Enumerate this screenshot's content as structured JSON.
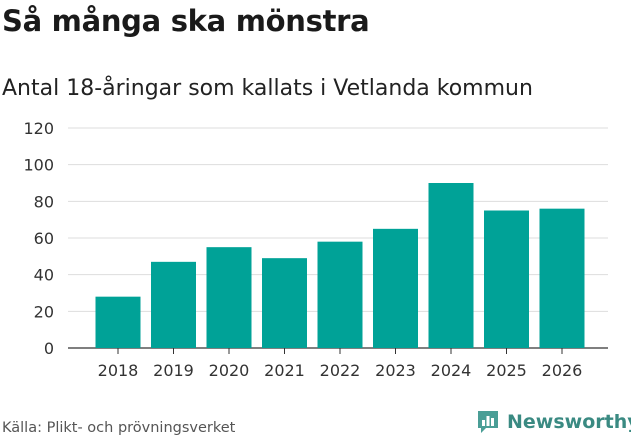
{
  "header": {
    "title": "Så många ska mönstra",
    "subtitle": "Antal 18-åringar som kallats i Vetlanda kommun"
  },
  "chart_data": {
    "type": "bar",
    "title": "Så många ska mönstra",
    "subtitle": "Antal 18-åringar som kallats i Vetlanda kommun",
    "categories": [
      "2018",
      "2019",
      "2020",
      "2021",
      "2022",
      "2023",
      "2024",
      "2025",
      "2026"
    ],
    "values": [
      28,
      47,
      55,
      49,
      58,
      65,
      90,
      75,
      76
    ],
    "xlabel": "",
    "ylabel": "",
    "ylim": [
      0,
      120
    ],
    "yticks": [
      0,
      20,
      40,
      60,
      80,
      100,
      120
    ],
    "grid": true,
    "bar_color": "#00a297"
  },
  "footer": {
    "source": "Källa: Plikt- och prövningsverket",
    "brand": "Newsworthy",
    "brand_icon": "newsworthy-logo-icon",
    "brand_color": "#3a8a82"
  }
}
